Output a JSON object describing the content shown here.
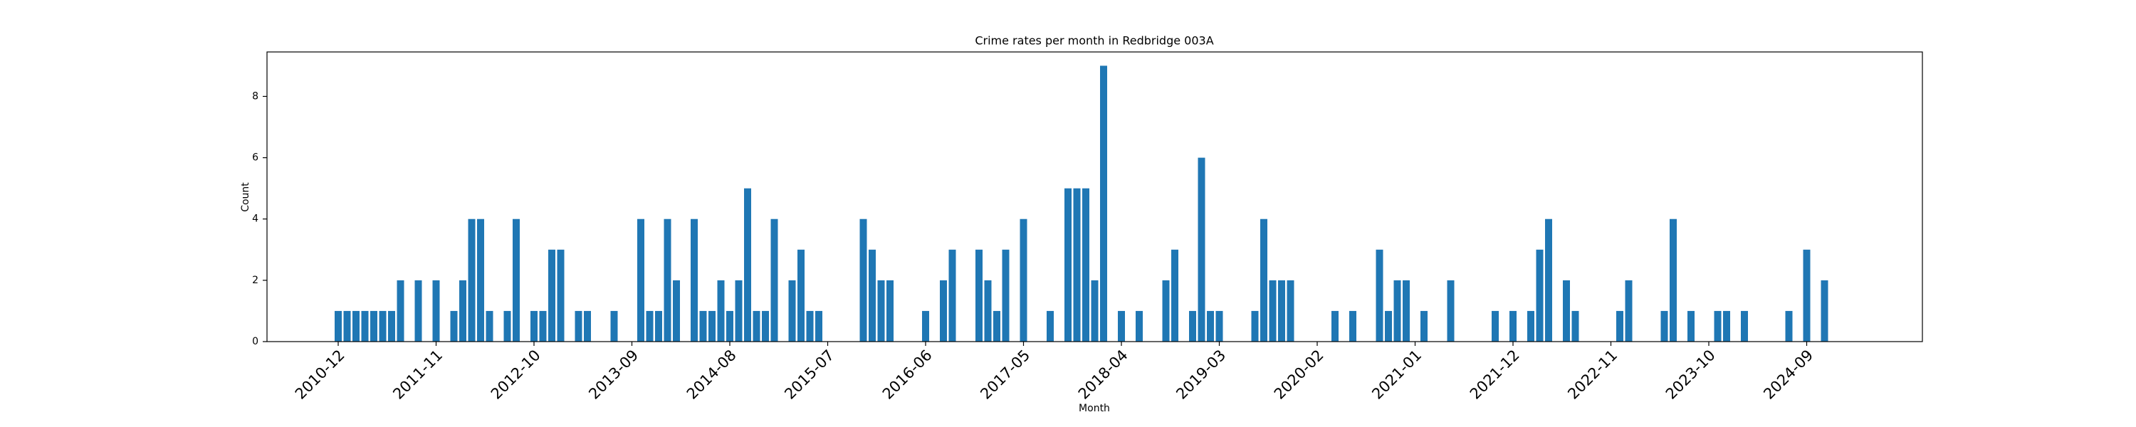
{
  "chart_data": {
    "type": "bar",
    "title": "Crime rates per month in Redbridge 003A",
    "x_label": "Month",
    "y_label": "Count",
    "color": "#1f77b4",
    "x": [
      "2010-12",
      "2011-01",
      "2011-02",
      "2011-03",
      "2011-04",
      "2011-05",
      "2011-06",
      "2011-07",
      "2011-09",
      "2011-11",
      "2012-01",
      "2012-02",
      "2012-03",
      "2012-04",
      "2012-05",
      "2012-07",
      "2012-08",
      "2012-10",
      "2012-11",
      "2012-12",
      "2013-01",
      "2013-03",
      "2013-04",
      "2013-07",
      "2013-10",
      "2013-11",
      "2013-12",
      "2014-01",
      "2014-02",
      "2014-04",
      "2014-05",
      "2014-06",
      "2014-07",
      "2014-08",
      "2014-09",
      "2014-10",
      "2014-11",
      "2014-12",
      "2015-01",
      "2015-03",
      "2015-04",
      "2015-05",
      "2015-06",
      "2015-11",
      "2015-12",
      "2016-01",
      "2016-02",
      "2016-06",
      "2016-08",
      "2016-09",
      "2016-12",
      "2017-01",
      "2017-02",
      "2017-03",
      "2017-05",
      "2017-08",
      "2017-10",
      "2017-11",
      "2017-12",
      "2018-01",
      "2018-02",
      "2018-04",
      "2018-06",
      "2018-09",
      "2018-10",
      "2018-12",
      "2019-01",
      "2019-02",
      "2019-03",
      "2019-07",
      "2019-08",
      "2019-09",
      "2019-10",
      "2019-11",
      "2020-04",
      "2020-06",
      "2020-09",
      "2020-10",
      "2020-11",
      "2020-12",
      "2021-02",
      "2021-05",
      "2021-10",
      "2021-12",
      "2022-02",
      "2022-03",
      "2022-04",
      "2022-06",
      "2022-07",
      "2022-12",
      "2023-01",
      "2023-05",
      "2023-06",
      "2023-08",
      "2023-11",
      "2023-12",
      "2024-02",
      "2024-07",
      "2024-09",
      "2024-11"
    ],
    "values": [
      1,
      1,
      1,
      1,
      1,
      1,
      1,
      2,
      2,
      2,
      1,
      2,
      4,
      4,
      1,
      1,
      4,
      1,
      1,
      3,
      3,
      1,
      1,
      1,
      4,
      1,
      1,
      4,
      2,
      4,
      1,
      1,
      2,
      1,
      2,
      5,
      1,
      1,
      4,
      2,
      3,
      1,
      1,
      4,
      3,
      2,
      2,
      1,
      2,
      3,
      3,
      2,
      1,
      3,
      4,
      1,
      5,
      5,
      5,
      2,
      9,
      1,
      1,
      2,
      3,
      1,
      6,
      1,
      1,
      1,
      4,
      2,
      2,
      2,
      1,
      1,
      3,
      1,
      2,
      2,
      1,
      2,
      1,
      1,
      1,
      3,
      4,
      2,
      1,
      1,
      2,
      1,
      4,
      1,
      1,
      1,
      1,
      1,
      3,
      2
    ],
    "xlim": [
      "2010-04",
      "2025-10"
    ],
    "xticks": [
      "2010-12",
      "2011-11",
      "2012-10",
      "2013-09",
      "2014-08",
      "2015-07",
      "2016-06",
      "2017-05",
      "2018-04",
      "2019-03",
      "2020-02",
      "2021-01",
      "2021-12",
      "2022-11",
      "2023-10",
      "2024-09"
    ],
    "ylim": [
      0,
      9.45
    ],
    "yticks": [
      0,
      2,
      4,
      6,
      8
    ]
  }
}
